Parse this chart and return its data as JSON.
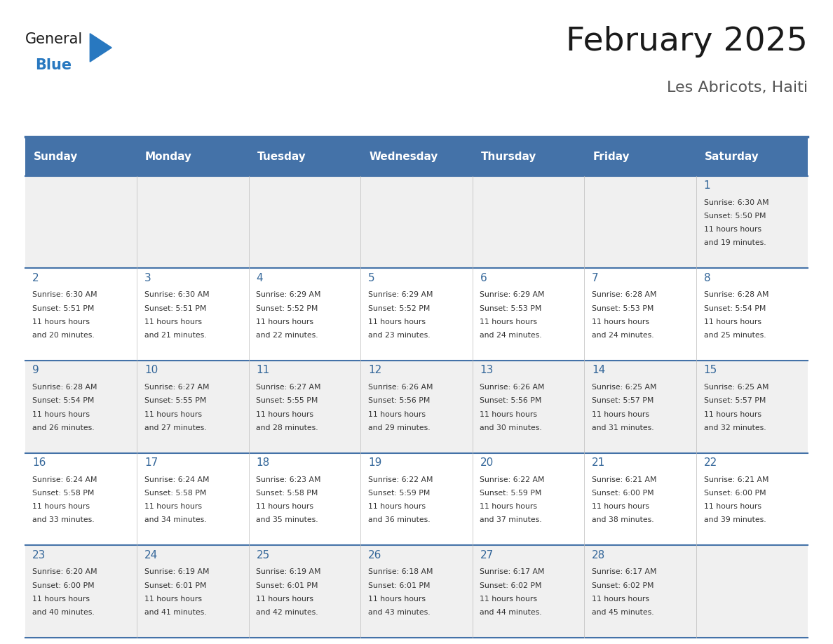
{
  "title": "February 2025",
  "subtitle": "Les Abricots, Haiti",
  "days_of_week": [
    "Sunday",
    "Monday",
    "Tuesday",
    "Wednesday",
    "Thursday",
    "Friday",
    "Saturday"
  ],
  "header_bg": "#4472a8",
  "header_text": "#ffffff",
  "row_bg_even": "#f0f0f0",
  "row_bg_odd": "#ffffff",
  "day_number_color": "#336699",
  "cell_text_color": "#333333",
  "border_color": "#4472a8",
  "calendar": [
    [
      null,
      null,
      null,
      null,
      null,
      null,
      {
        "day": 1,
        "sunrise": "6:30 AM",
        "sunset": "5:50 PM",
        "daylight": "11 hours and 19 minutes."
      }
    ],
    [
      {
        "day": 2,
        "sunrise": "6:30 AM",
        "sunset": "5:51 PM",
        "daylight": "11 hours and 20 minutes."
      },
      {
        "day": 3,
        "sunrise": "6:30 AM",
        "sunset": "5:51 PM",
        "daylight": "11 hours and 21 minutes."
      },
      {
        "day": 4,
        "sunrise": "6:29 AM",
        "sunset": "5:52 PM",
        "daylight": "11 hours and 22 minutes."
      },
      {
        "day": 5,
        "sunrise": "6:29 AM",
        "sunset": "5:52 PM",
        "daylight": "11 hours and 23 minutes."
      },
      {
        "day": 6,
        "sunrise": "6:29 AM",
        "sunset": "5:53 PM",
        "daylight": "11 hours and 24 minutes."
      },
      {
        "day": 7,
        "sunrise": "6:28 AM",
        "sunset": "5:53 PM",
        "daylight": "11 hours and 24 minutes."
      },
      {
        "day": 8,
        "sunrise": "6:28 AM",
        "sunset": "5:54 PM",
        "daylight": "11 hours and 25 minutes."
      }
    ],
    [
      {
        "day": 9,
        "sunrise": "6:28 AM",
        "sunset": "5:54 PM",
        "daylight": "11 hours and 26 minutes."
      },
      {
        "day": 10,
        "sunrise": "6:27 AM",
        "sunset": "5:55 PM",
        "daylight": "11 hours and 27 minutes."
      },
      {
        "day": 11,
        "sunrise": "6:27 AM",
        "sunset": "5:55 PM",
        "daylight": "11 hours and 28 minutes."
      },
      {
        "day": 12,
        "sunrise": "6:26 AM",
        "sunset": "5:56 PM",
        "daylight": "11 hours and 29 minutes."
      },
      {
        "day": 13,
        "sunrise": "6:26 AM",
        "sunset": "5:56 PM",
        "daylight": "11 hours and 30 minutes."
      },
      {
        "day": 14,
        "sunrise": "6:25 AM",
        "sunset": "5:57 PM",
        "daylight": "11 hours and 31 minutes."
      },
      {
        "day": 15,
        "sunrise": "6:25 AM",
        "sunset": "5:57 PM",
        "daylight": "11 hours and 32 minutes."
      }
    ],
    [
      {
        "day": 16,
        "sunrise": "6:24 AM",
        "sunset": "5:58 PM",
        "daylight": "11 hours and 33 minutes."
      },
      {
        "day": 17,
        "sunrise": "6:24 AM",
        "sunset": "5:58 PM",
        "daylight": "11 hours and 34 minutes."
      },
      {
        "day": 18,
        "sunrise": "6:23 AM",
        "sunset": "5:58 PM",
        "daylight": "11 hours and 35 minutes."
      },
      {
        "day": 19,
        "sunrise": "6:22 AM",
        "sunset": "5:59 PM",
        "daylight": "11 hours and 36 minutes."
      },
      {
        "day": 20,
        "sunrise": "6:22 AM",
        "sunset": "5:59 PM",
        "daylight": "11 hours and 37 minutes."
      },
      {
        "day": 21,
        "sunrise": "6:21 AM",
        "sunset": "6:00 PM",
        "daylight": "11 hours and 38 minutes."
      },
      {
        "day": 22,
        "sunrise": "6:21 AM",
        "sunset": "6:00 PM",
        "daylight": "11 hours and 39 minutes."
      }
    ],
    [
      {
        "day": 23,
        "sunrise": "6:20 AM",
        "sunset": "6:00 PM",
        "daylight": "11 hours and 40 minutes."
      },
      {
        "day": 24,
        "sunrise": "6:19 AM",
        "sunset": "6:01 PM",
        "daylight": "11 hours and 41 minutes."
      },
      {
        "day": 25,
        "sunrise": "6:19 AM",
        "sunset": "6:01 PM",
        "daylight": "11 hours and 42 minutes."
      },
      {
        "day": 26,
        "sunrise": "6:18 AM",
        "sunset": "6:01 PM",
        "daylight": "11 hours and 43 minutes."
      },
      {
        "day": 27,
        "sunrise": "6:17 AM",
        "sunset": "6:02 PM",
        "daylight": "11 hours and 44 minutes."
      },
      {
        "day": 28,
        "sunrise": "6:17 AM",
        "sunset": "6:02 PM",
        "daylight": "11 hours and 45 minutes."
      },
      null
    ]
  ],
  "logo_general_color": "#1a1a1a",
  "logo_blue_color": "#2878c0",
  "logo_triangle_color": "#2878c0"
}
